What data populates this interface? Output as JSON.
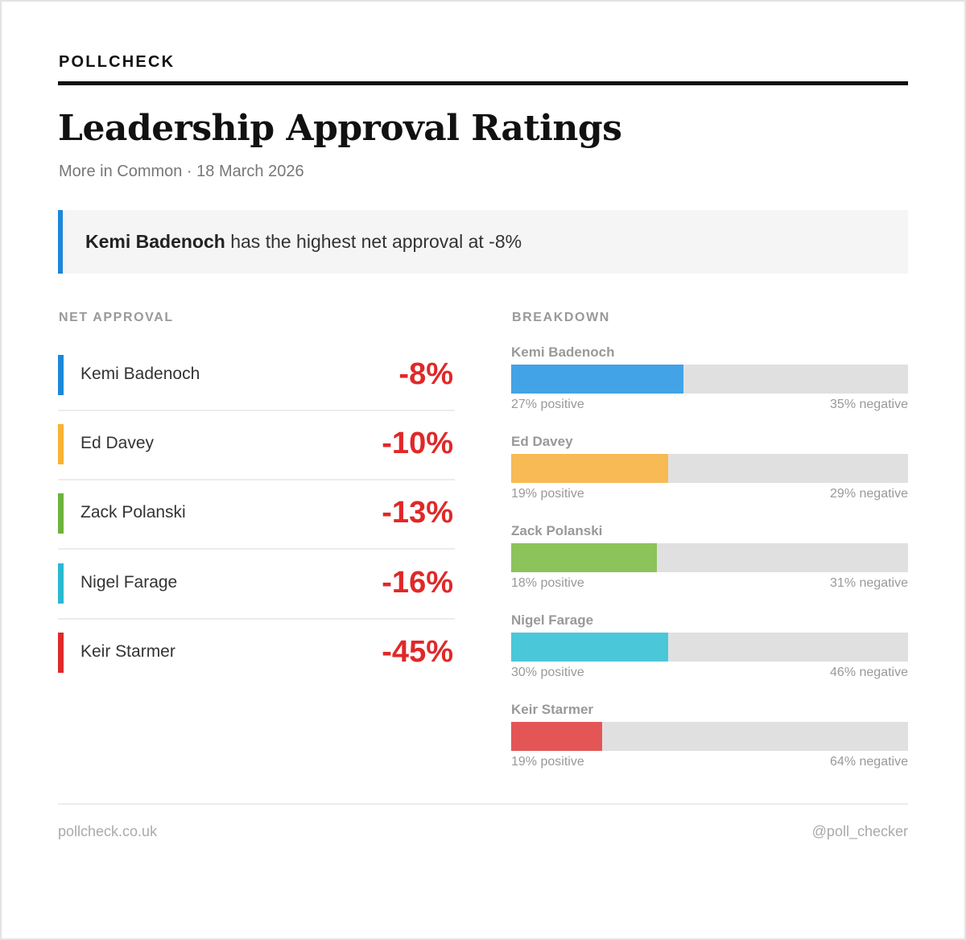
{
  "brand": "POLLCHECK",
  "title": "Leadership Approval Ratings",
  "subtitle": "More in Common · 18 March 2026",
  "callout": {
    "name": "Kemi Badenoch",
    "text": " has the highest net approval at -8%",
    "accent": "#1a88db"
  },
  "net_label": "NET APPROVAL",
  "breakdown_label": "BREAKDOWN",
  "footer": {
    "site": "pollcheck.co.uk",
    "handle": "@poll_checker"
  },
  "colors": {
    "negative_value": "#e02828",
    "track": "#e0e0e0"
  },
  "chart_data": {
    "type": "bar",
    "categories": [
      "Kemi Badenoch",
      "Ed Davey",
      "Zack Polanski",
      "Nigel Farage",
      "Keir Starmer"
    ],
    "series": [
      {
        "name": "positive",
        "values": [
          27,
          19,
          18,
          30,
          19
        ]
      },
      {
        "name": "negative",
        "values": [
          35,
          29,
          31,
          46,
          64
        ]
      }
    ],
    "net_values": [
      -8,
      -10,
      -13,
      -16,
      -45
    ],
    "net_labels": [
      "-8%",
      "-10%",
      "-13%",
      "-16%",
      "-45%"
    ],
    "positive_labels": [
      "27% positive",
      "19% positive",
      "18% positive",
      "30% positive",
      "19% positive"
    ],
    "negative_labels": [
      "35% negative",
      "29% negative",
      "31% negative",
      "46% negative",
      "64% negative"
    ],
    "positive_share_of_bar": [
      0.435,
      0.396,
      0.367,
      0.395,
      0.229
    ],
    "colors": [
      "#1a88db",
      "#f9b233",
      "#6cb33e",
      "#29b9d3",
      "#dd2a2a"
    ],
    "bar_colors": [
      "#42a3e6",
      "#f8ba55",
      "#8cc35a",
      "#4bc7da",
      "#e45656"
    ]
  }
}
